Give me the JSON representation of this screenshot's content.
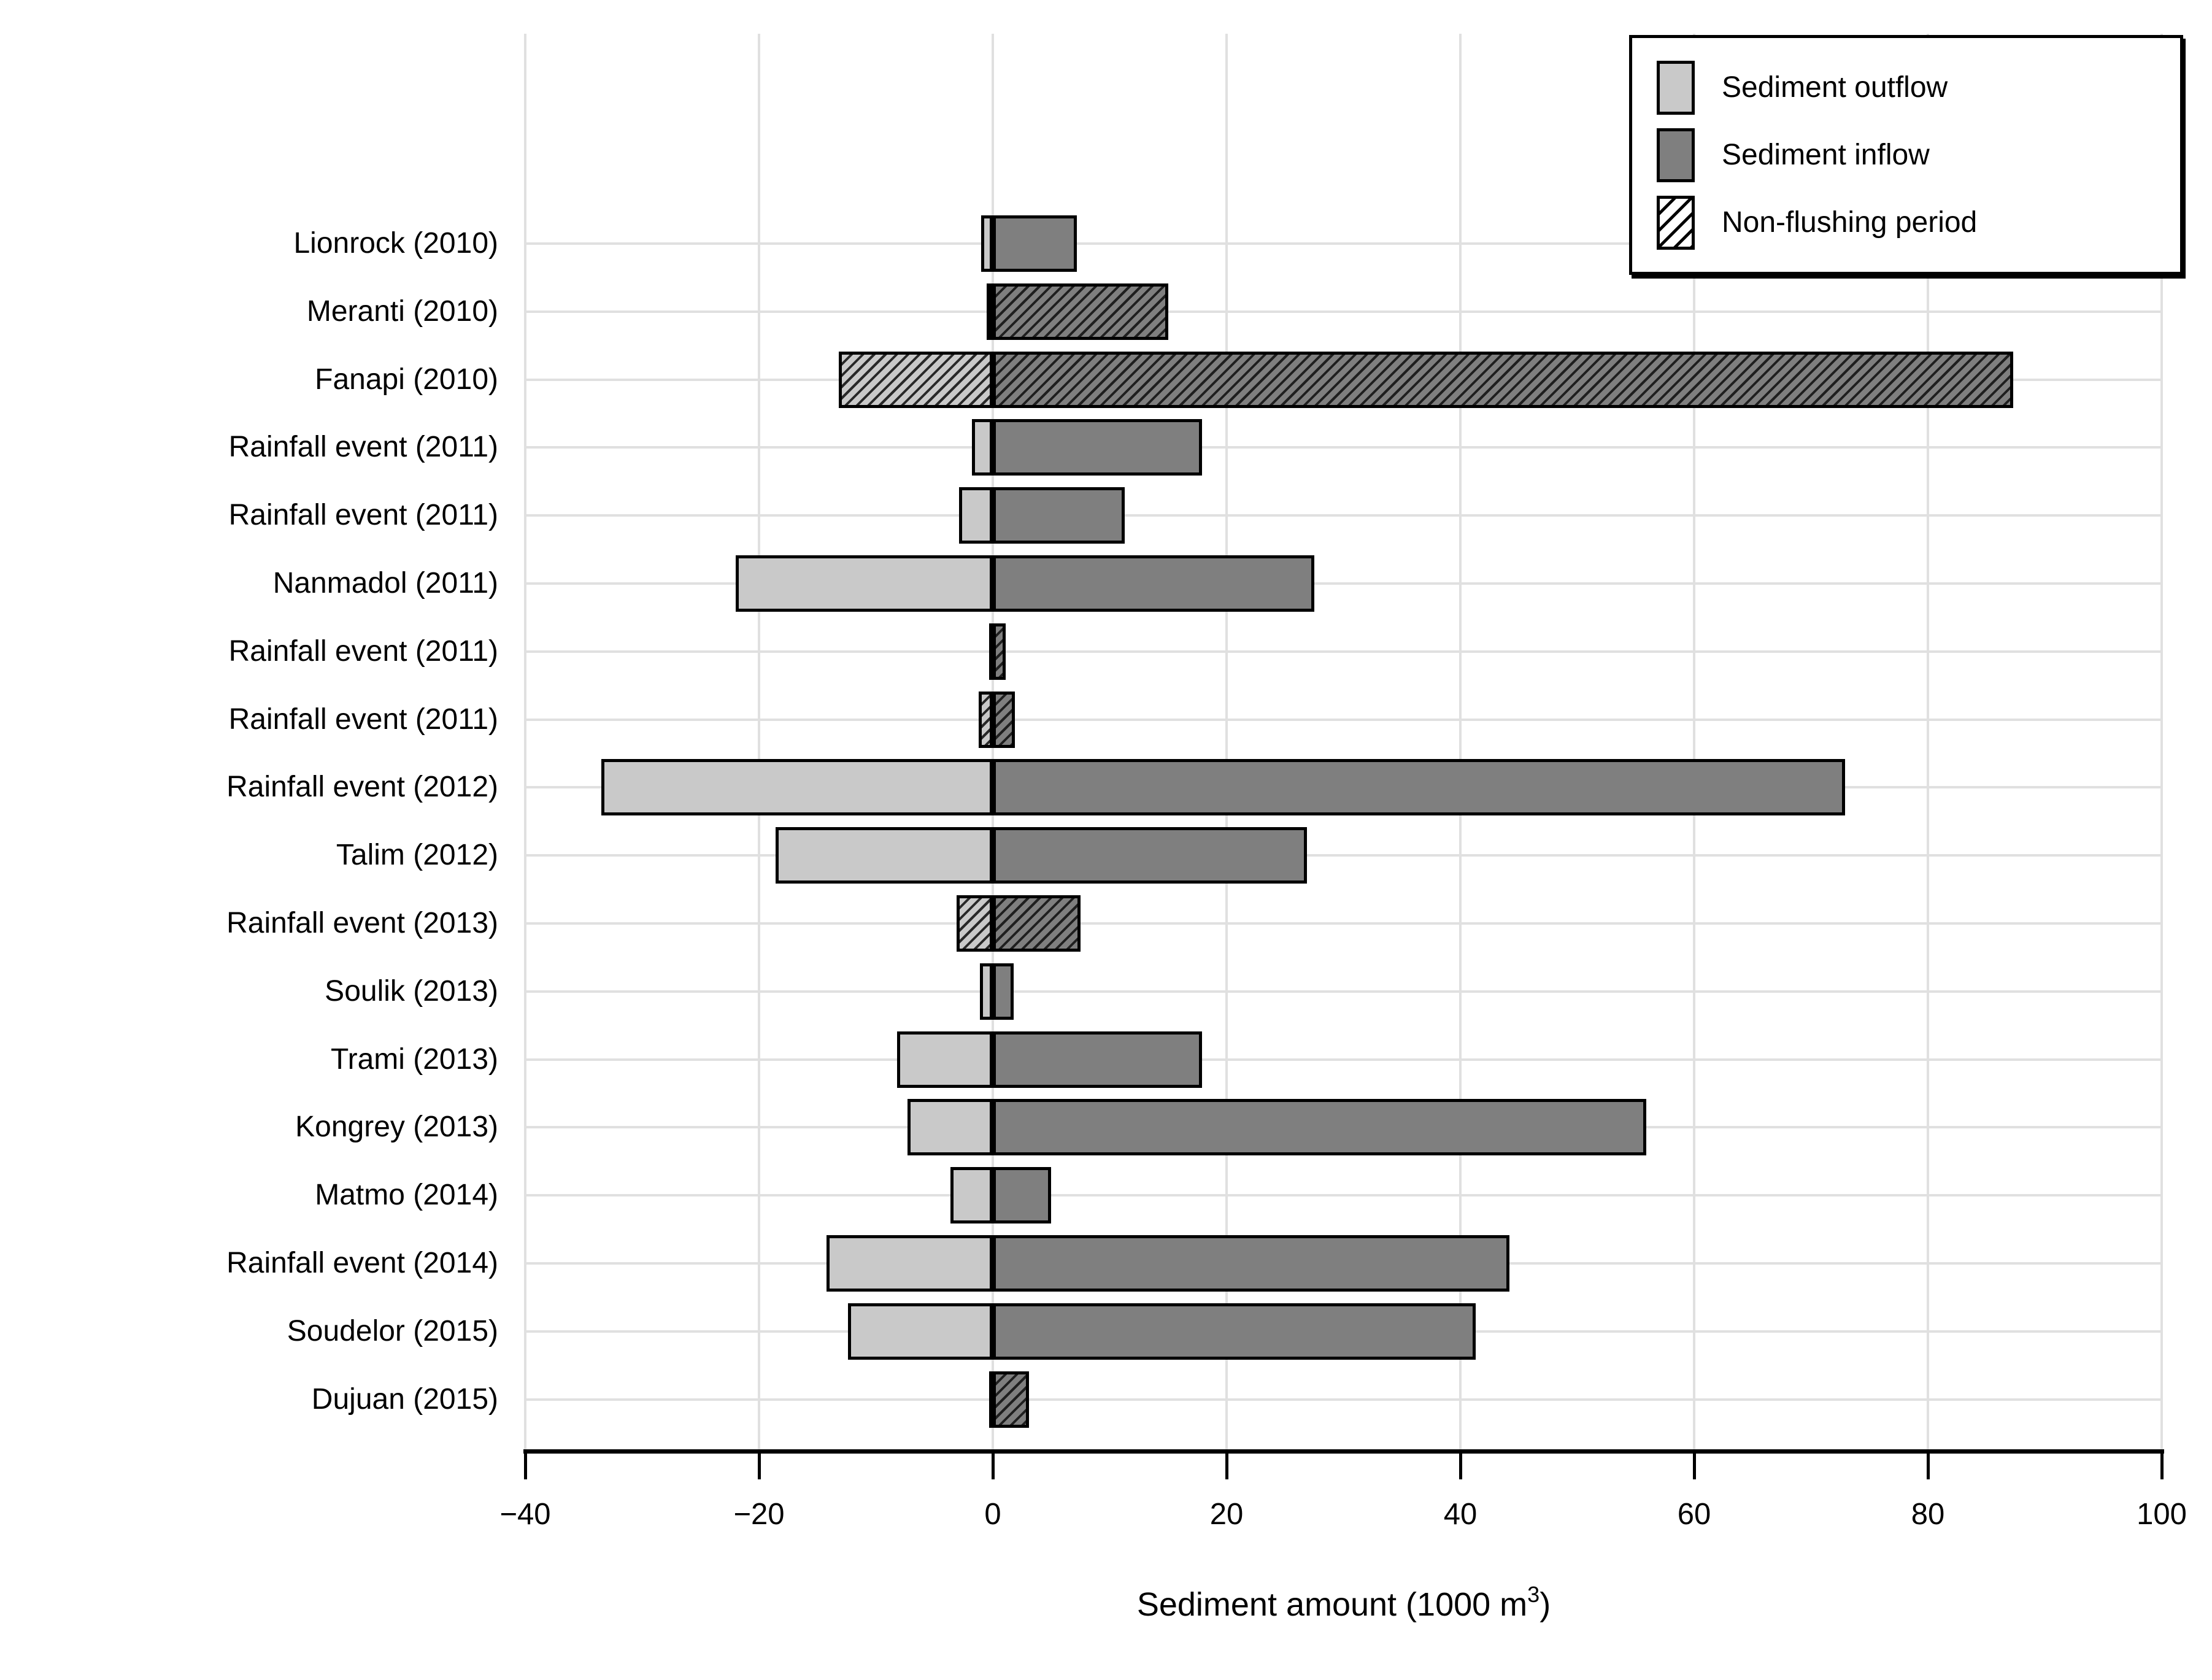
{
  "figure": {
    "colors": {
      "outflow_fill": "#c9c9c9",
      "inflow_fill": "#7f7f7f",
      "bar_border": "#000000",
      "gridline": "#e0e0e0",
      "background": "#ffffff"
    },
    "axis": {
      "xlabel_prefix": "Sediment amount (1000 m",
      "xlabel_sup": "3",
      "xlabel_suffix": ")",
      "tick_labels": [
        "−40",
        "−20",
        "0",
        "20",
        "40",
        "60",
        "80",
        "100"
      ],
      "tick_values": [
        -40,
        -20,
        0,
        20,
        40,
        60,
        80,
        100
      ]
    },
    "legend": {
      "items": [
        {
          "label": "Sediment outflow",
          "swatch": "outflow"
        },
        {
          "label": "Sediment inflow",
          "swatch": "inflow"
        },
        {
          "label": "Non-flushing period",
          "swatch": "hatch"
        }
      ]
    }
  },
  "chart_data": {
    "type": "bar",
    "orientation": "horizontal",
    "title": "",
    "xlabel": "Sediment amount (1000 m^3)",
    "ylabel": "",
    "xlim": [
      -40,
      100
    ],
    "grid": true,
    "legend_position": "top-right",
    "categories": [
      "Lionrock (2010)",
      "Meranti (2010)",
      "Fanapi (2010)",
      "Rainfall event (2011)",
      "Rainfall event (2011)",
      "Nanmadol (2011)",
      "Rainfall event (2011)",
      "Rainfall event (2011)",
      "Rainfall event (2012)",
      "Talim (2012)",
      "Rainfall event (2013)",
      "Soulik (2013)",
      "Trami (2013)",
      "Kongrey (2013)",
      "Matmo (2014)",
      "Rainfall event (2014)",
      "Soudelor (2015)",
      "Dujuan (2015)"
    ],
    "series": [
      {
        "name": "Sediment outflow",
        "values": [
          -1.0,
          -0.5,
          -13.2,
          -1.8,
          -2.9,
          -22.0,
          -0.3,
          -1.2,
          -33.5,
          -18.6,
          -3.1,
          -1.1,
          -8.2,
          -7.3,
          -3.6,
          -14.2,
          -12.4,
          -0.3
        ]
      },
      {
        "name": "Sediment inflow",
        "values": [
          7.2,
          15.0,
          87.3,
          17.9,
          11.3,
          27.5,
          1.1,
          1.9,
          72.9,
          26.9,
          7.5,
          1.8,
          17.9,
          55.9,
          5.0,
          44.2,
          41.3,
          3.1
        ]
      }
    ],
    "non_flushing_rows": [
      1,
      2,
      6,
      7,
      10,
      17
    ]
  }
}
